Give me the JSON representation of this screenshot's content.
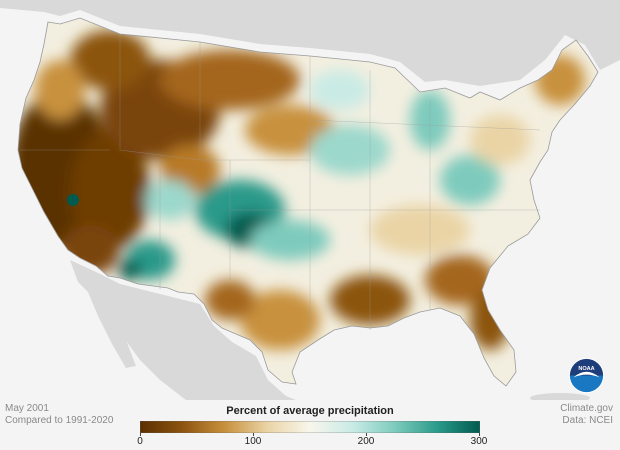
{
  "meta": {
    "date": "May 2001",
    "baseline": "Compared to 1991-2020",
    "source_site": "Climate.gov",
    "source_data": "Data: NCEI"
  },
  "legend": {
    "title": "Percent of average precipitation",
    "ticks": [
      "0",
      "100",
      "200",
      "300"
    ],
    "range": [
      0,
      300
    ],
    "colors": [
      "#5a3000",
      "#8c5410",
      "#c8913e",
      "#ead4a6",
      "#f8f6ec",
      "#c9ebe5",
      "#7ecbbd",
      "#2a9a8a",
      "#005a4e"
    ]
  },
  "map": {
    "land_color": "#d9d9d9",
    "water_color": "#f4f4f4",
    "logo_text": "NOAA",
    "logo_colors": {
      "top": "#1e3d7b",
      "bottom": "#1a78c2"
    }
  }
}
